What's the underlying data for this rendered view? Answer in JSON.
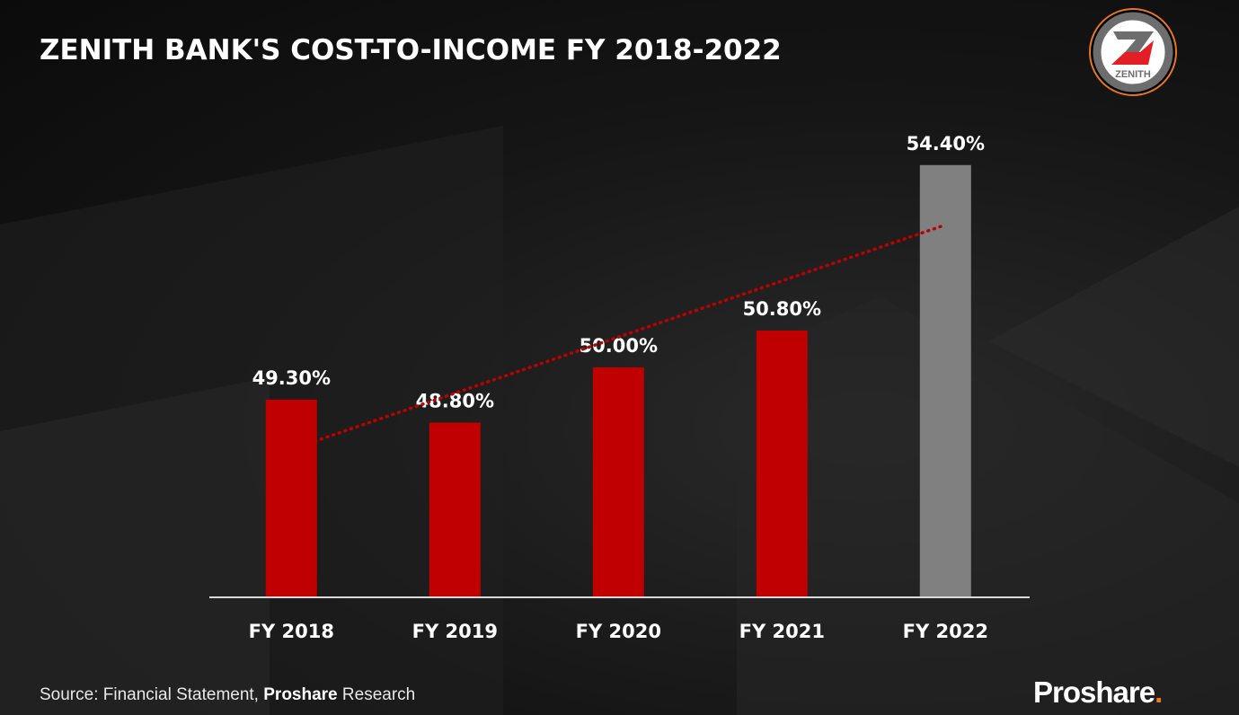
{
  "title": "ZENITH BANK'S COST-TO-INCOME FY 2018-2022",
  "logo": {
    "text": "ZENITH",
    "colors": {
      "ring": "#e87722",
      "gray": "#6d6d6d",
      "red": "#e31e24"
    }
  },
  "source": {
    "prefix": "Source: Financial Statement, ",
    "bold": "Proshare",
    "suffix": " Research"
  },
  "brand": {
    "name": "Proshare",
    "dot": ".",
    "dot_color": "#f07c1e"
  },
  "chart_data": {
    "type": "bar",
    "title": "ZENITH BANK'S COST-TO-INCOME FY 2018-2022",
    "categories": [
      "FY 2018",
      "FY 2019",
      "FY 2020",
      "FY 2021",
      "FY 2022"
    ],
    "values": [
      49.3,
      48.8,
      50.0,
      50.8,
      54.4
    ],
    "labels": [
      "49.30%",
      "48.80%",
      "50.00%",
      "50.80%",
      "54.40%"
    ],
    "colors": [
      "#c00000",
      "#c00000",
      "#c00000",
      "#c00000",
      "#808080"
    ],
    "trendline": {
      "type": "linear",
      "style": "dotted",
      "color": "#c00000"
    },
    "xlabel": "",
    "ylabel": "",
    "ylim": [
      45,
      55.45
    ],
    "grid": false,
    "legend": "none"
  }
}
